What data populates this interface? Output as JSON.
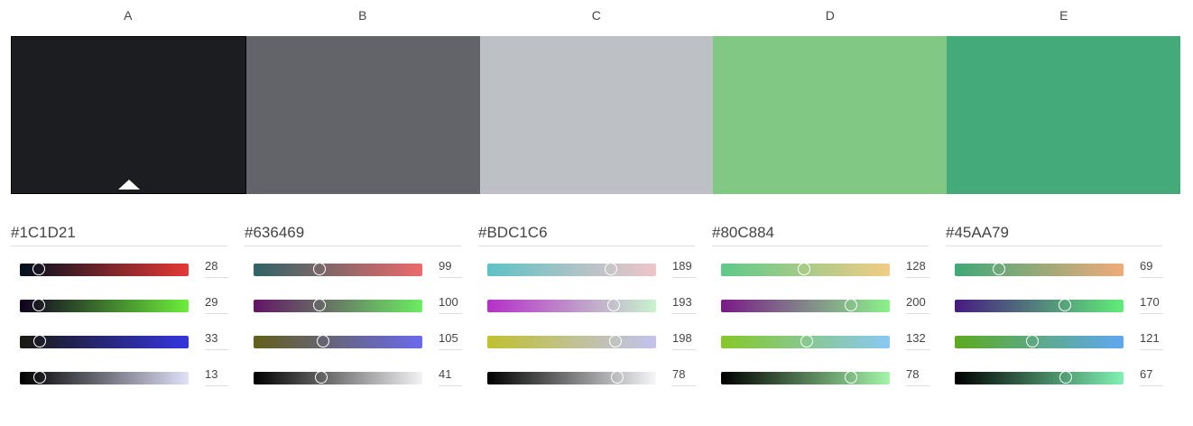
{
  "palette": [
    {
      "letter": "A",
      "hex": "#1C1D21",
      "color": "#1C1D21",
      "selected": true,
      "channels": [
        {
          "value": "28",
          "gradient": [
            "#00101e",
            "#e53935"
          ],
          "fraction": 0.11
        },
        {
          "value": "29",
          "gradient": [
            "#100020",
            "#6cee3a"
          ],
          "fraction": 0.11
        },
        {
          "value": "33",
          "gradient": [
            "#1a1a10",
            "#3535e0"
          ],
          "fraction": 0.12
        },
        {
          "value": "13",
          "gradient": [
            "#000000",
            "#e0e0f8"
          ],
          "fraction": 0.12
        }
      ]
    },
    {
      "letter": "B",
      "hex": "#636469",
      "color": "#636469",
      "selected": false,
      "channels": [
        {
          "value": "99",
          "gradient": [
            "#2f6468",
            "#ec6a6a"
          ],
          "fraction": 0.39
        },
        {
          "value": "100",
          "gradient": [
            "#631467",
            "#6bed62"
          ],
          "fraction": 0.39
        },
        {
          "value": "105",
          "gradient": [
            "#635f1a",
            "#6a6aec"
          ],
          "fraction": 0.41
        },
        {
          "value": "41",
          "gradient": [
            "#000000",
            "#f3f3f5"
          ],
          "fraction": 0.4
        }
      ]
    },
    {
      "letter": "C",
      "hex": "#BDC1C6",
      "color": "#BDC1C6",
      "selected": false,
      "channels": [
        {
          "value": "189",
          "gradient": [
            "#5ec2c6",
            "#f0c4c8"
          ],
          "fraction": 0.73
        },
        {
          "value": "193",
          "gradient": [
            "#b530c8",
            "#c8f3cd"
          ],
          "fraction": 0.75
        },
        {
          "value": "198",
          "gradient": [
            "#c0c030",
            "#c2c2f0"
          ],
          "fraction": 0.76
        },
        {
          "value": "78",
          "gradient": [
            "#000000",
            "#f6f7f9"
          ],
          "fraction": 0.77
        }
      ]
    },
    {
      "letter": "D",
      "hex": "#80C884",
      "color": "#80C884",
      "selected": false,
      "channels": [
        {
          "value": "128",
          "gradient": [
            "#5ec98a",
            "#f2cc86"
          ],
          "fraction": 0.49
        },
        {
          "value": "200",
          "gradient": [
            "#7a1a88",
            "#8af28a"
          ],
          "fraction": 0.77
        },
        {
          "value": "132",
          "gradient": [
            "#86c828",
            "#8ac8f4"
          ],
          "fraction": 0.51
        },
        {
          "value": "78",
          "gradient": [
            "#000000",
            "#a5f5a8"
          ],
          "fraction": 0.77
        }
      ]
    },
    {
      "letter": "E",
      "hex": "#45AA79",
      "color": "#45AA79",
      "selected": false,
      "channels": [
        {
          "value": "69",
          "gradient": [
            "#40a878",
            "#f0aa7a"
          ],
          "fraction": 0.26
        },
        {
          "value": "170",
          "gradient": [
            "#461a80",
            "#60ee78"
          ],
          "fraction": 0.65
        },
        {
          "value": "121",
          "gradient": [
            "#5caa1e",
            "#5fa8f2"
          ],
          "fraction": 0.46
        },
        {
          "value": "67",
          "gradient": [
            "#000000",
            "#80f2b2"
          ],
          "fraction": 0.66
        }
      ]
    }
  ]
}
